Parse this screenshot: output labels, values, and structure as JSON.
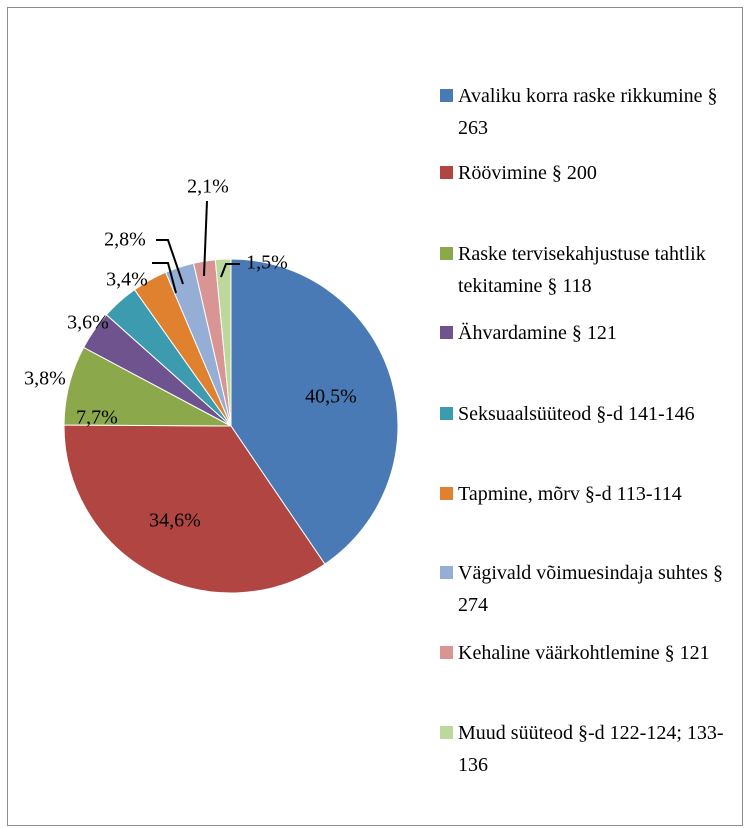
{
  "chart_data": {
    "type": "pie",
    "categories": [
      "Avaliku korra raske rikkumine § 263",
      "Röövimine § 200",
      "Raske tervisekahjustuse tahtlik tekitamine § 118",
      "Ähvardamine § 121",
      "Seksuaalsüüteod §-d 141-146",
      "Tapmine, mõrv §-d 113-114",
      "Vägivald võimuesindaja suhtes § 274",
      "Kehaline väärkohtlemine § 121",
      "Muud süüteod §-d 122-124; 133-136"
    ],
    "values": [
      40.5,
      34.6,
      7.7,
      3.8,
      3.6,
      3.4,
      2.8,
      2.1,
      1.5
    ],
    "value_labels": [
      "40,5%",
      "34,6%",
      "7,7%",
      "3,8%",
      "3,6%",
      "3,4%",
      "2,8%",
      "2,1%",
      "1,5%"
    ],
    "colors": [
      "#4a7ab5",
      "#b04541",
      "#8ba94b",
      "#6e538f",
      "#3d9bb0",
      "#e0812f",
      "#94aed6",
      "#d99594",
      "#bcd89a"
    ],
    "legend": "right"
  }
}
